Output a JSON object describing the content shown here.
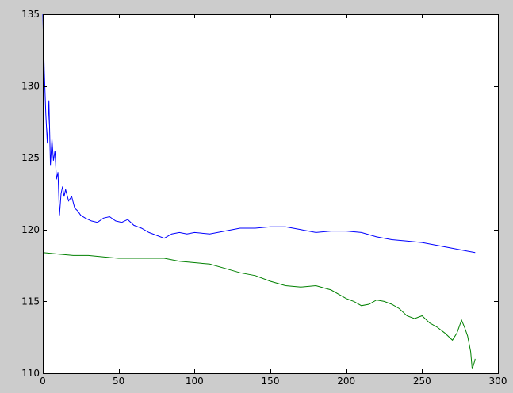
{
  "chart_data": {
    "type": "line",
    "title": "",
    "xlabel": "",
    "ylabel": "",
    "xlim": [
      0,
      300
    ],
    "ylim": [
      110,
      135
    ],
    "x_ticks": [
      0,
      50,
      100,
      150,
      200,
      250,
      300
    ],
    "y_ticks": [
      110,
      115,
      120,
      125,
      130,
      135
    ],
    "grid": false,
    "legend": "none",
    "background": "#cccccc",
    "plot_background": "#ffffff",
    "series": [
      {
        "color": "#0000ff",
        "points": [
          [
            0,
            135
          ],
          [
            1,
            131
          ],
          [
            2,
            128
          ],
          [
            3,
            126
          ],
          [
            4,
            129
          ],
          [
            5,
            124.5
          ],
          [
            6,
            126.3
          ],
          [
            7,
            124.8
          ],
          [
            8,
            125.5
          ],
          [
            9,
            123.5
          ],
          [
            10,
            124
          ],
          [
            11,
            121
          ],
          [
            12,
            122.5
          ],
          [
            13,
            123
          ],
          [
            14,
            122.3
          ],
          [
            15,
            122.8
          ],
          [
            17,
            122
          ],
          [
            19,
            122.3
          ],
          [
            21,
            121.5
          ],
          [
            23,
            121.3
          ],
          [
            25,
            121
          ],
          [
            28,
            120.8
          ],
          [
            32,
            120.6
          ],
          [
            36,
            120.5
          ],
          [
            40,
            120.8
          ],
          [
            44,
            120.9
          ],
          [
            48,
            120.6
          ],
          [
            52,
            120.5
          ],
          [
            56,
            120.7
          ],
          [
            60,
            120.3
          ],
          [
            65,
            120.1
          ],
          [
            70,
            119.8
          ],
          [
            75,
            119.6
          ],
          [
            80,
            119.4
          ],
          [
            85,
            119.7
          ],
          [
            90,
            119.8
          ],
          [
            95,
            119.7
          ],
          [
            100,
            119.8
          ],
          [
            110,
            119.7
          ],
          [
            120,
            119.9
          ],
          [
            130,
            120.1
          ],
          [
            140,
            120.1
          ],
          [
            150,
            120.2
          ],
          [
            160,
            120.2
          ],
          [
            170,
            120.0
          ],
          [
            180,
            119.8
          ],
          [
            190,
            119.9
          ],
          [
            200,
            119.9
          ],
          [
            210,
            119.8
          ],
          [
            220,
            119.5
          ],
          [
            230,
            119.3
          ],
          [
            240,
            119.2
          ],
          [
            250,
            119.1
          ],
          [
            260,
            118.9
          ],
          [
            270,
            118.7
          ],
          [
            280,
            118.5
          ],
          [
            285,
            118.4
          ]
        ]
      },
      {
        "color": "#008000",
        "points": [
          [
            0,
            118.4
          ],
          [
            10,
            118.3
          ],
          [
            20,
            118.2
          ],
          [
            30,
            118.2
          ],
          [
            40,
            118.1
          ],
          [
            50,
            118.0
          ],
          [
            60,
            118.0
          ],
          [
            70,
            118.0
          ],
          [
            80,
            118.0
          ],
          [
            90,
            117.8
          ],
          [
            100,
            117.7
          ],
          [
            110,
            117.6
          ],
          [
            120,
            117.3
          ],
          [
            130,
            117.0
          ],
          [
            140,
            116.8
          ],
          [
            150,
            116.4
          ],
          [
            160,
            116.1
          ],
          [
            170,
            116.0
          ],
          [
            180,
            116.1
          ],
          [
            190,
            115.8
          ],
          [
            200,
            115.2
          ],
          [
            205,
            115.0
          ],
          [
            210,
            114.7
          ],
          [
            215,
            114.8
          ],
          [
            220,
            115.1
          ],
          [
            225,
            115.0
          ],
          [
            230,
            114.8
          ],
          [
            235,
            114.5
          ],
          [
            240,
            114.0
          ],
          [
            245,
            113.8
          ],
          [
            250,
            114.0
          ],
          [
            255,
            113.5
          ],
          [
            260,
            113.2
          ],
          [
            265,
            112.8
          ],
          [
            270,
            112.3
          ],
          [
            273,
            112.8
          ],
          [
            276,
            113.7
          ],
          [
            278,
            113.2
          ],
          [
            280,
            112.6
          ],
          [
            282,
            111.5
          ],
          [
            283,
            110.3
          ],
          [
            284,
            110.6
          ],
          [
            285,
            111.0
          ]
        ]
      }
    ]
  }
}
